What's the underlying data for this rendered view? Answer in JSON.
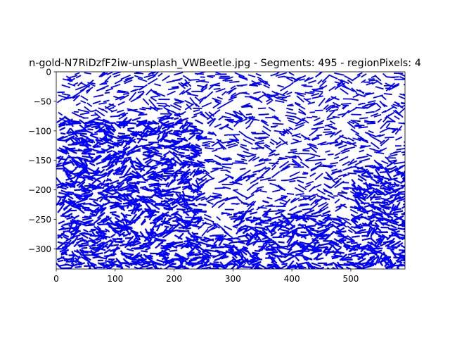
{
  "chart_data": {
    "type": "line",
    "title": "n-gold-N7RiDzfF2iw-unsplash_VWBeetle.jpg - Segments: 495 - regionPixels: 4",
    "xlabel": "",
    "ylabel": "",
    "xlim": [
      0,
      592
    ],
    "ylim": [
      -334,
      0
    ],
    "x_ticks": [
      0,
      100,
      200,
      300,
      400,
      500
    ],
    "x_tick_labels": [
      "0",
      "100",
      "200",
      "300",
      "400",
      "500"
    ],
    "y_ticks": [
      0,
      -50,
      -100,
      -150,
      -200,
      -250,
      -300
    ],
    "y_tick_labels": [
      "0",
      "−50",
      "−100",
      "−150",
      "−200",
      "−250",
      "−300"
    ],
    "grid": false,
    "segment_count": 495,
    "segment_length": 14,
    "cell_size": 20,
    "seed": 7,
    "line_color": "#0000ff",
    "dense_regions": [
      {
        "x": [
          0,
          230
        ],
        "y": [
          -334,
          -80
        ]
      },
      {
        "x": [
          230,
          592
        ],
        "y": [
          -334,
          -290
        ]
      },
      {
        "x": [
          500,
          592
        ],
        "y": [
          -330,
          -160
        ]
      },
      {
        "x": [
          300,
          480
        ],
        "y": [
          -300,
          -240
        ]
      }
    ]
  }
}
